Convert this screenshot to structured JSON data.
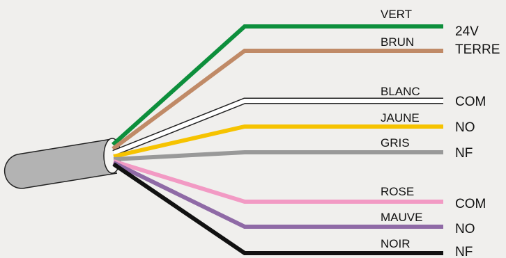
{
  "wires": [
    {
      "label": "VERT",
      "color": "#0d8f3c",
      "terminal": "24V"
    },
    {
      "label": "BRUN",
      "color": "#c08a67",
      "terminal": "TERRE"
    },
    {
      "label": "BLANC",
      "color": "#ffffff",
      "terminal": "COM"
    },
    {
      "label": "JAUNE",
      "color": "#f6c300",
      "terminal": "NO"
    },
    {
      "label": "GRIS",
      "color": "#999999",
      "terminal": "NF"
    },
    {
      "label": "ROSE",
      "color": "#f29ac4",
      "terminal": "COM"
    },
    {
      "label": "MAUVE",
      "color": "#8f6aa6",
      "terminal": "NO"
    },
    {
      "label": "NOIR",
      "color": "#111111",
      "terminal": "NF"
    }
  ],
  "cable": {
    "jacket_color": "#b3b3b3",
    "outline_color": "#222222"
  }
}
